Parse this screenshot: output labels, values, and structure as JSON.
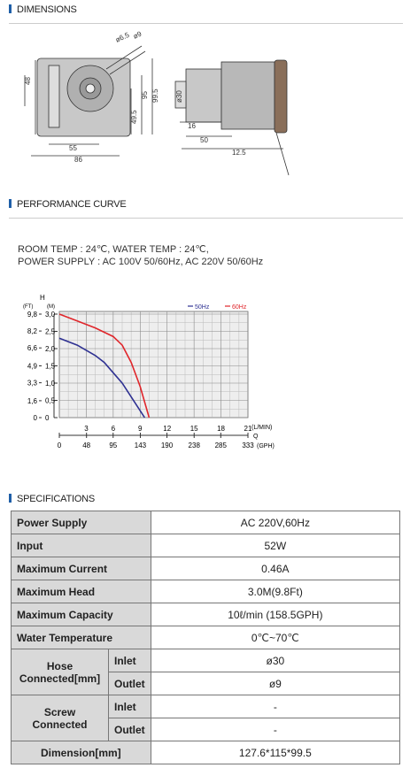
{
  "sections": [
    "DIMENSIONS",
    "PERFORMANCE CURVE",
    "SPECIFICATIONS"
  ],
  "dimensions": {
    "labels": [
      "ø6.5",
      "ø9",
      "48",
      "95",
      "99.5",
      "49.5",
      "55",
      "86",
      "ø30",
      "16",
      "50",
      "12.5"
    ]
  },
  "conditions": [
    "ROOM TEMP : 24℃, WATER TEMP : 24℃,",
    "POWER SUPPLY : AC 100V 50/60Hz, AC 220V 50/60Hz"
  ],
  "chart_data": {
    "type": "line",
    "y_label": "H",
    "y2_unit": "(FT)",
    "y_unit": "(M)",
    "x_unit": "(L/MIN)",
    "x_label": "Q",
    "x2_unit": "(GPH)",
    "xlim": [
      0,
      21
    ],
    "xticks": [
      3,
      6,
      9,
      12,
      15,
      18,
      21
    ],
    "x2lim": [
      0,
      333
    ],
    "x2ticks": [
      0,
      48,
      95,
      143,
      190,
      238,
      285,
      333
    ],
    "ylim": [
      0,
      3
    ],
    "yticks": [
      0,
      {
        "value": 0.5,
        "label": "0,5"
      },
      {
        "value": 1,
        "label": "1,0"
      },
      {
        "value": 1.5,
        "label": "1,5"
      },
      {
        "value": 2,
        "label": "2,0"
      },
      {
        "value": 2.5,
        "label": "2,5"
      },
      {
        "value": 3,
        "label": "3,0"
      }
    ],
    "y2lim": [
      0,
      9.8
    ],
    "y2ticks": [
      0,
      {
        "value": 1.6,
        "label": "1,6"
      },
      {
        "value": 3.3,
        "label": "3,3"
      },
      {
        "value": 4.9,
        "label": "4,9"
      },
      {
        "value": 6.6,
        "label": "6,6"
      },
      {
        "value": 8.2,
        "label": "8,2"
      },
      {
        "value": 9.8,
        "label": "9,8"
      }
    ],
    "grid": true,
    "series": [
      {
        "name": "50Hz",
        "color": "#2e3192",
        "x": [
          0,
          2,
          4,
          5,
          6,
          7,
          8,
          9,
          9.5
        ],
        "values": [
          2.3,
          2.1,
          1.8,
          1.6,
          1.3,
          1.0,
          0.6,
          0.2,
          0
        ]
      },
      {
        "name": "60Hz",
        "color": "#e0262b",
        "x": [
          0,
          2,
          4,
          6,
          7,
          8,
          9,
          10
        ],
        "values": [
          3.0,
          2.8,
          2.6,
          2.35,
          2.1,
          1.6,
          0.9,
          0
        ]
      }
    ]
  },
  "table": {
    "rows": [
      [
        "Power Supply",
        "AC 220V,60Hz"
      ],
      [
        "Input",
        "52W"
      ],
      [
        "Maximum Current",
        "0.46A"
      ],
      [
        "Maximum Head",
        "3.0M(9.8Ft)"
      ],
      [
        "Maximum Capacity",
        "10ℓ/min (158.5GPH)"
      ],
      [
        "Water Temperature",
        "0℃~70℃"
      ],
      [
        "Hose Connected[mm]",
        "Inlet",
        "ø30",
        "Outlet",
        "ø9"
      ],
      [
        "Screw Connected",
        "Inlet",
        "-",
        "Outlet",
        "-"
      ],
      [
        "Dimension[mm]",
        "127.6*115*99.5"
      ]
    ]
  }
}
